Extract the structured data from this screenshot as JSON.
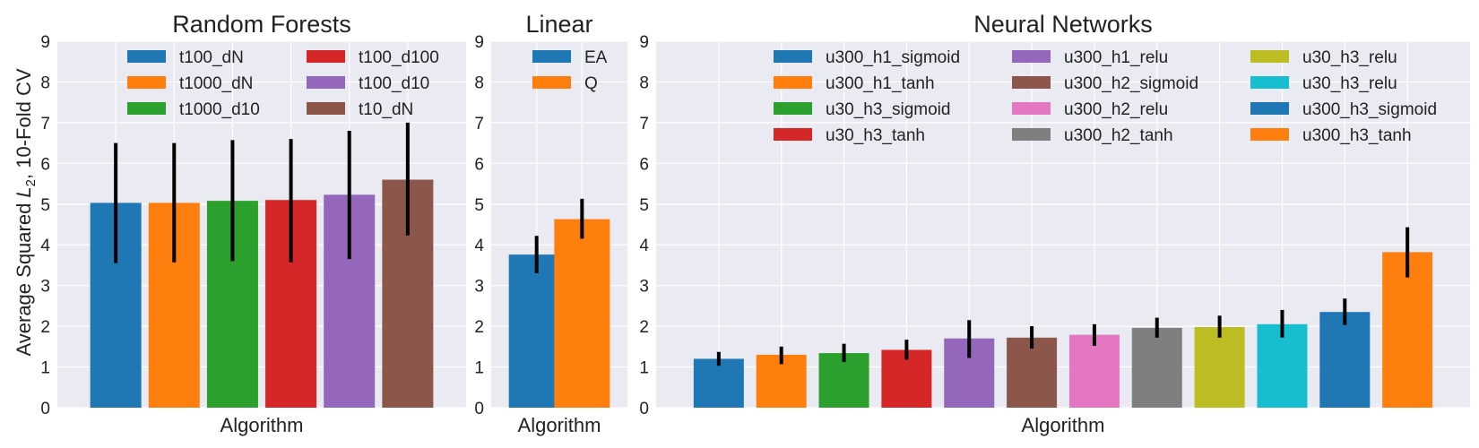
{
  "chart_data": [
    {
      "type": "bar",
      "title": "Random Forests",
      "xlabel": "Algorithm",
      "ylabel_prefix": "Average Squared ",
      "ylabel_symbol": "L",
      "ylabel_sub": "2",
      "ylabel_suffix": ", 10-Fold CV",
      "ylim": [
        0,
        9
      ],
      "yticks": [
        "0",
        "1",
        "2",
        "3",
        "4",
        "5",
        "6",
        "7",
        "8",
        "9"
      ],
      "grid": true,
      "legend_columns": 2,
      "legend_position": "top",
      "series": [
        {
          "name": "t100_dN",
          "value": 5.03,
          "err_low": 3.55,
          "err_high": 6.5,
          "color": "#1f77b4"
        },
        {
          "name": "t1000_dN",
          "value": 5.03,
          "err_low": 3.57,
          "err_high": 6.5,
          "color": "#ff7f0e"
        },
        {
          "name": "t1000_d10",
          "value": 5.08,
          "err_low": 3.6,
          "err_high": 6.57,
          "color": "#2ca02c"
        },
        {
          "name": "t100_d100",
          "value": 5.1,
          "err_low": 3.57,
          "err_high": 6.6,
          "color": "#d62728"
        },
        {
          "name": "t100_d10",
          "value": 5.23,
          "err_low": 3.65,
          "err_high": 6.8,
          "color": "#9467bd"
        },
        {
          "name": "t10_dN",
          "value": 5.6,
          "err_low": 4.23,
          "err_high": 7.0,
          "color": "#8c564b"
        }
      ]
    },
    {
      "type": "bar",
      "title": "Linear",
      "xlabel": "Algorithm",
      "ylim": [
        0,
        9
      ],
      "yticks": [
        "0",
        "1",
        "2",
        "3",
        "4",
        "5",
        "6",
        "7",
        "8",
        "9"
      ],
      "grid": true,
      "legend_columns": 1,
      "legend_position": "top",
      "series": [
        {
          "name": "EA",
          "value": 3.76,
          "err_low": 3.3,
          "err_high": 4.22,
          "color": "#1f77b4"
        },
        {
          "name": "Q",
          "value": 4.63,
          "err_low": 4.15,
          "err_high": 5.13,
          "color": "#ff7f0e"
        }
      ]
    },
    {
      "type": "bar",
      "title": "Neural Networks",
      "xlabel": "Algorithm",
      "ylim": [
        0,
        9
      ],
      "yticks": [
        "0",
        "1",
        "2",
        "3",
        "4",
        "5",
        "6",
        "7",
        "8",
        "9"
      ],
      "grid": true,
      "legend_columns": 3,
      "legend_position": "top",
      "series": [
        {
          "name": "u300_h1_sigmoid",
          "value": 1.2,
          "err_low": 1.03,
          "err_high": 1.37,
          "color": "#1f77b4"
        },
        {
          "name": "u300_h1_tanh",
          "value": 1.3,
          "err_low": 1.07,
          "err_high": 1.5,
          "color": "#ff7f0e"
        },
        {
          "name": "u30_h3_sigmoid",
          "value": 1.34,
          "err_low": 1.12,
          "err_high": 1.57,
          "color": "#2ca02c"
        },
        {
          "name": "u30_h3_tanh",
          "value": 1.42,
          "err_low": 1.18,
          "err_high": 1.67,
          "color": "#d62728"
        },
        {
          "name": "u300_h1_relu",
          "value": 1.7,
          "err_low": 1.22,
          "err_high": 2.15,
          "color": "#9467bd"
        },
        {
          "name": "u300_h2_sigmoid",
          "value": 1.72,
          "err_low": 1.45,
          "err_high": 2.0,
          "color": "#8c564b"
        },
        {
          "name": "u300_h2_relu",
          "value": 1.79,
          "err_low": 1.52,
          "err_high": 2.05,
          "color": "#e377c2"
        },
        {
          "name": "u300_h2_tanh",
          "value": 1.96,
          "err_low": 1.72,
          "err_high": 2.21,
          "color": "#7f7f7f"
        },
        {
          "name": "u30_h3_relu",
          "value": 1.98,
          "err_low": 1.72,
          "err_high": 2.26,
          "color": "#bcbd22"
        },
        {
          "name": "u30_h3_relu",
          "value": 2.05,
          "err_low": 1.72,
          "err_high": 2.4,
          "color": "#17becf"
        },
        {
          "name": "u300_h3_sigmoid",
          "value": 2.35,
          "err_low": 2.03,
          "err_high": 2.68,
          "color": "#1f77b4"
        },
        {
          "name": "u300_h3_tanh",
          "value": 3.82,
          "err_low": 3.2,
          "err_high": 4.43,
          "color": "#ff7f0e"
        }
      ]
    }
  ]
}
